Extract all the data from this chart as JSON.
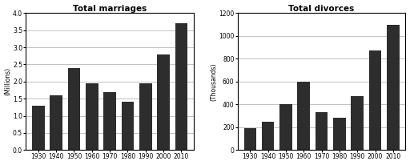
{
  "years": [
    1930,
    1940,
    1950,
    1960,
    1970,
    1980,
    1990,
    2000,
    2010
  ],
  "marriages": [
    1.3,
    1.6,
    2.4,
    1.95,
    1.7,
    1.4,
    1.95,
    2.8,
    3.7
  ],
  "divorces": [
    190,
    250,
    400,
    600,
    330,
    280,
    470,
    870,
    1100
  ],
  "title_marriages": "Total marriages",
  "title_divorces": "Total divorces",
  "ylabel_marriages": "(Millions)",
  "ylabel_divorces": "(Thousands)",
  "ylim_marriages": [
    0,
    4
  ],
  "ylim_divorces": [
    0,
    1200
  ],
  "yticks_marriages": [
    0,
    0.5,
    1.0,
    1.5,
    2.0,
    2.5,
    3.0,
    3.5,
    4.0
  ],
  "yticks_divorces": [
    0,
    200,
    400,
    600,
    800,
    1000,
    1200
  ],
  "bar_color": "#2d2d2d",
  "bg_color": "#ffffff",
  "grid_color": "#aaaaaa"
}
